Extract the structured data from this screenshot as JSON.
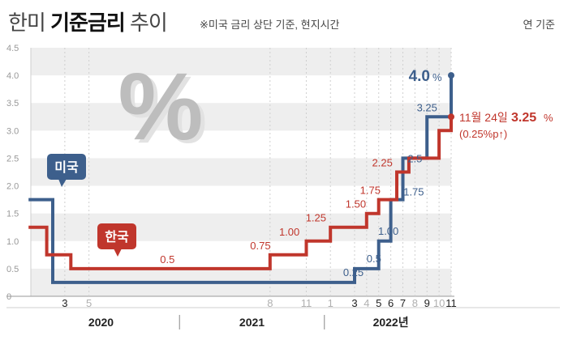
{
  "header": {
    "title_light_1": "한미 ",
    "title_bold": "기준금리",
    "title_light_2": " 추이",
    "subtitle": "※미국 금리 상단 기준, 현지시간",
    "unit": "연 기준"
  },
  "colors": {
    "us": "#3d5f8c",
    "kr": "#c0362c",
    "band": "#eeeeee",
    "axis": "#555555",
    "muted": "#b0b0b0"
  },
  "chart_data": {
    "type": "line",
    "step": true,
    "title": "한미 기준금리 추이",
    "ylabel": "연 기준",
    "ylim": [
      0,
      4.5
    ],
    "y_ticks": [
      "0",
      "0.5",
      "1.0",
      "1.5",
      "2.0",
      "2.5",
      "3.0",
      "3.5",
      "4.0",
      "4.5"
    ],
    "x_ticks": [
      {
        "label": "3",
        "pos": 3,
        "dark": true
      },
      {
        "label": "5",
        "pos": 5,
        "dark": false
      },
      {
        "label": "8",
        "pos": 20,
        "dark": false
      },
      {
        "label": "11",
        "pos": 23,
        "dark": false
      },
      {
        "label": "1",
        "pos": 25,
        "dark": false
      },
      {
        "label": "3",
        "pos": 27,
        "dark": true
      },
      {
        "label": "4",
        "pos": 28,
        "dark": false
      },
      {
        "label": "5",
        "pos": 29,
        "dark": true
      },
      {
        "label": "6",
        "pos": 30,
        "dark": true
      },
      {
        "label": "7",
        "pos": 31,
        "dark": true
      },
      {
        "label": "8",
        "pos": 32,
        "dark": false
      },
      {
        "label": "9",
        "pos": 33,
        "dark": true
      },
      {
        "label": "10",
        "pos": 34,
        "dark": false
      },
      {
        "label": "11",
        "pos": 35,
        "dark": true
      }
    ],
    "year_labels": [
      {
        "label": "2020",
        "pos": 6
      },
      {
        "label": "2021",
        "pos": 18.5
      },
      {
        "label": "2022년",
        "pos": 30
      }
    ],
    "year_dividers": [
      12.5,
      24.5
    ],
    "series": [
      {
        "name": "미국",
        "label": "미국",
        "points": [
          [
            0,
            1.75
          ],
          [
            2,
            1.75
          ],
          [
            2,
            0.25
          ],
          [
            27,
            0.25
          ],
          [
            27,
            0.5
          ],
          [
            29,
            0.5
          ],
          [
            29,
            1.0
          ],
          [
            30,
            1.0
          ],
          [
            30,
            1.75
          ],
          [
            31,
            1.75
          ],
          [
            31,
            2.5
          ],
          [
            33,
            2.5
          ],
          [
            33,
            3.25
          ],
          [
            35,
            3.25
          ],
          [
            35,
            4.0
          ]
        ],
        "annotations": [
          {
            "text": "0.25",
            "pos": 26.9,
            "val": 0.25,
            "dy": -8
          },
          {
            "text": "0.5",
            "pos": 28.6,
            "val": 0.5,
            "dy": -8
          },
          {
            "text": "1.00",
            "pos": 29.8,
            "val": 1.0,
            "dy": -8
          },
          {
            "text": "1.75",
            "pos": 31.9,
            "val": 1.75,
            "dy": -5
          },
          {
            "text": "2.5",
            "pos": 32.0,
            "val": 2.5,
            "dy": 5
          },
          {
            "text": "3.25",
            "pos": 33.0,
            "val": 3.25,
            "dy": -7
          }
        ]
      },
      {
        "name": "한국",
        "label": "한국",
        "points": [
          [
            0,
            1.25
          ],
          [
            1.5,
            1.25
          ],
          [
            1.5,
            0.75
          ],
          [
            3.5,
            0.75
          ],
          [
            3.5,
            0.5
          ],
          [
            20,
            0.5
          ],
          [
            20,
            0.75
          ],
          [
            23,
            0.75
          ],
          [
            23,
            1.0
          ],
          [
            25,
            1.0
          ],
          [
            25,
            1.25
          ],
          [
            28,
            1.25
          ],
          [
            28,
            1.5
          ],
          [
            29,
            1.5
          ],
          [
            29,
            1.75
          ],
          [
            30.5,
            1.75
          ],
          [
            30.5,
            2.25
          ],
          [
            31.5,
            2.25
          ],
          [
            31.5,
            2.5
          ],
          [
            34,
            2.5
          ],
          [
            34,
            3.0
          ],
          [
            35,
            3.0
          ],
          [
            35,
            3.25
          ]
        ],
        "annotations": [
          {
            "text": "0.5",
            "pos": 11.5,
            "val": 0.5,
            "dy": -7
          },
          {
            "text": "0.75",
            "pos": 19.2,
            "val": 0.75,
            "dy": -7
          },
          {
            "text": "1.00",
            "pos": 21.6,
            "val": 1.0,
            "dy": -7
          },
          {
            "text": "1.25",
            "pos": 23.8,
            "val": 1.25,
            "dy": -7
          },
          {
            "text": "1.50",
            "pos": 27.1,
            "val": 1.5,
            "dy": -7
          },
          {
            "text": "1.75",
            "pos": 28.3,
            "val": 1.75,
            "dy": -7
          },
          {
            "text": "2.25",
            "pos": 29.3,
            "val": 2.25,
            "dy": -7
          }
        ]
      }
    ],
    "us_end": {
      "value_label": "4.0",
      "suffix": "%"
    },
    "kr_end": {
      "date_label": "11월 24일",
      "value_label": "3.25",
      "suffix": "%",
      "change_label": "(0.25%p↑)"
    },
    "decor_symbol": "%"
  }
}
